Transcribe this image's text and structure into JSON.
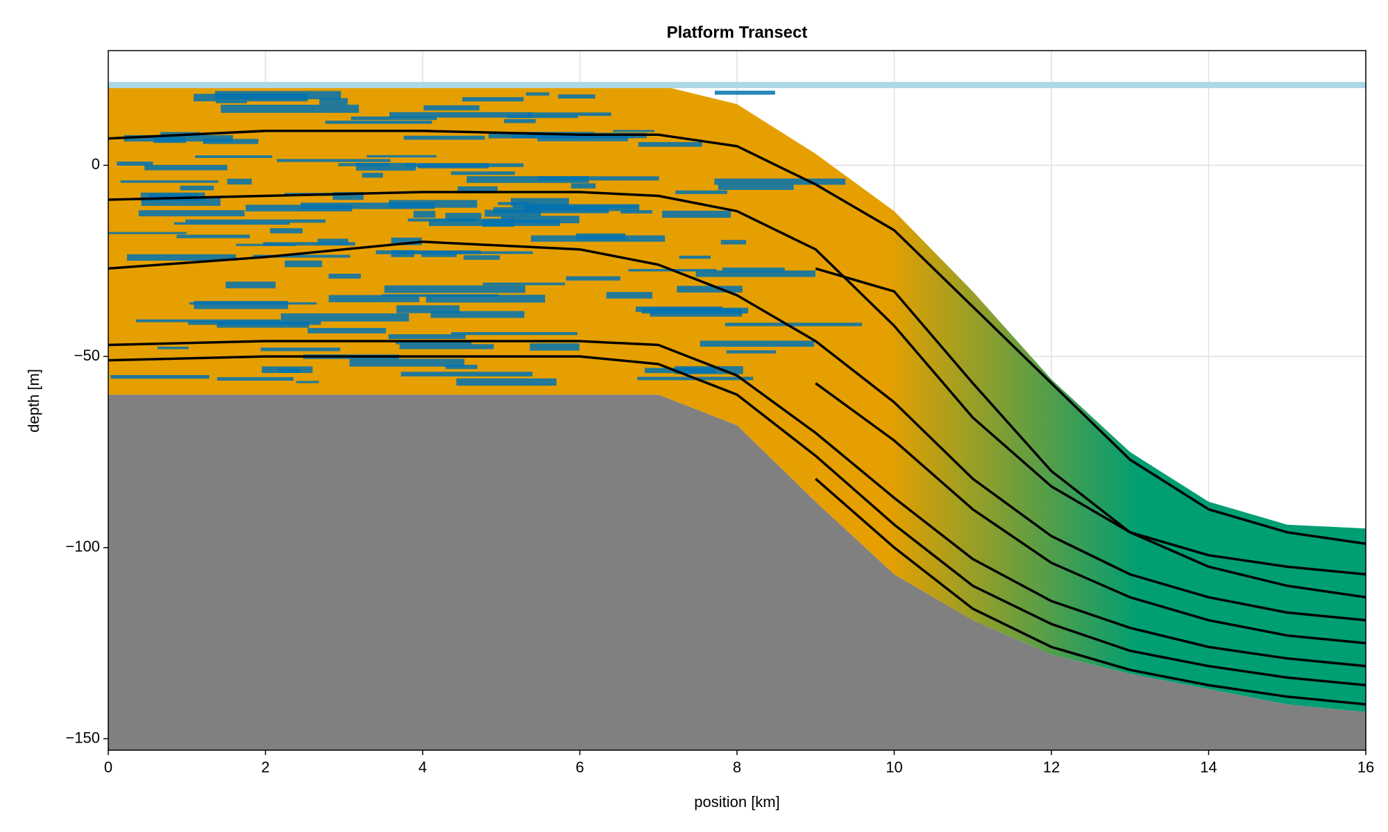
{
  "chart_data": {
    "type": "line",
    "title": "Platform Transect",
    "xlabel": "position [km]",
    "ylabel": "depth [m]",
    "x": [
      0,
      2,
      4,
      6,
      7,
      8,
      9,
      10,
      11,
      12,
      13,
      14,
      15,
      16
    ],
    "series": [
      {
        "color": "#000000",
        "values": [
          7,
          9,
          9,
          8,
          8,
          5,
          -5,
          -17,
          -37,
          -57,
          -77,
          -90,
          -96,
          -99
        ]
      },
      {
        "color": "#000000",
        "values": [
          -9,
          -8,
          -7,
          -7,
          -8,
          -12,
          -22,
          -42,
          -66,
          -84,
          -96,
          -102,
          -105,
          -107
        ]
      },
      {
        "color": "#000000",
        "values": [
          null,
          null,
          null,
          null,
          null,
          null,
          -27,
          -33,
          -57,
          -80,
          -96,
          -105,
          -110,
          -113
        ]
      },
      {
        "color": "#000000",
        "values": [
          -27,
          -24,
          -20,
          -22,
          -26,
          -34,
          -46,
          -62,
          -82,
          -97,
          -107,
          -113,
          -117,
          -119
        ]
      },
      {
        "color": "#000000",
        "values": [
          null,
          null,
          null,
          null,
          null,
          null,
          -57,
          -72,
          -90,
          -104,
          -113,
          -119,
          -123,
          -125
        ]
      },
      {
        "color": "#000000",
        "values": [
          -47,
          -46,
          -46,
          -46,
          -47,
          -55,
          -70,
          -87,
          -103,
          -114,
          -121,
          -126,
          -129,
          -131
        ]
      },
      {
        "color": "#000000",
        "values": [
          -51,
          -50,
          -50,
          -50,
          -52,
          -60,
          -76,
          -94,
          -110,
          -120,
          -127,
          -131,
          -134,
          -136
        ]
      },
      {
        "color": "#000000",
        "values": [
          null,
          null,
          null,
          null,
          null,
          null,
          -82,
          -100,
          -116,
          -126,
          -132,
          -136,
          -139,
          -141
        ]
      }
    ],
    "surface": [
      21,
      21,
      21,
      21,
      21,
      16,
      3,
      -12,
      -33,
      -56,
      -75,
      -88,
      -94,
      -95
    ],
    "basement": [
      -60,
      -60,
      -60,
      -60,
      -60,
      -68,
      -88,
      -107,
      -119,
      -128,
      -133,
      -137,
      -141,
      -143
    ],
    "sea_level": 21,
    "colors": {
      "sediment": "#e69f00",
      "deep": "#009e73",
      "streak": "#0072b2",
      "basement": "#808080",
      "sea": "#add8e6"
    },
    "xlim": [
      0,
      16
    ],
    "xticks": [
      0,
      2,
      4,
      6,
      8,
      10,
      12,
      14,
      16
    ],
    "ylim": [
      -153,
      30
    ],
    "yticks": [
      {
        "value": -150,
        "label": "−150"
      },
      {
        "value": -100,
        "label": "−100"
      },
      {
        "value": -50,
        "label": "−50"
      },
      0
    ],
    "grid": true
  }
}
